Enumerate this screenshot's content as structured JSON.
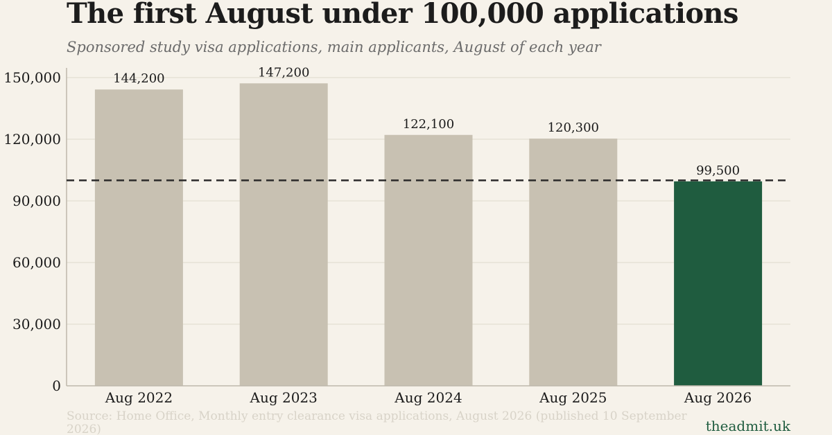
{
  "title": "The first August under 100,000 applications",
  "subtitle": "Sponsored study visa applications, main applicants, August of each year",
  "source": "Source: Home Office, Monthly entry clearance visa applications, August 2026 (published 10 September 2026)",
  "brand": "theadmit.uk",
  "colors": {
    "background": "#f6f2ea",
    "bar_default": "#c8c1b2",
    "bar_highlight": "#1f5c3f",
    "grid": "#e4ded2",
    "reference_line": "#2a2a2a",
    "text": "#1a1a1a"
  },
  "chart_data": {
    "type": "bar",
    "title": "The first August under 100,000 applications",
    "subtitle": "Sponsored study visa applications, main applicants, August of each year",
    "xlabel": "",
    "ylabel": "",
    "categories": [
      "Aug 2022",
      "Aug 2023",
      "Aug 2024",
      "Aug 2025",
      "Aug 2026"
    ],
    "values": [
      144200,
      147200,
      122100,
      120300,
      99500
    ],
    "value_labels": [
      "144,200",
      "147,200",
      "122,100",
      "120,300",
      "99,500"
    ],
    "highlight_index": 4,
    "ylim": [
      0,
      150000
    ],
    "yticks": [
      0,
      30000,
      60000,
      90000,
      120000,
      150000
    ],
    "ytick_labels": [
      "0",
      "30,000",
      "60,000",
      "90,000",
      "120,000",
      "150,000"
    ],
    "reference_line": {
      "value": 100000,
      "style": "dashed"
    },
    "grid": true,
    "legend": false
  }
}
